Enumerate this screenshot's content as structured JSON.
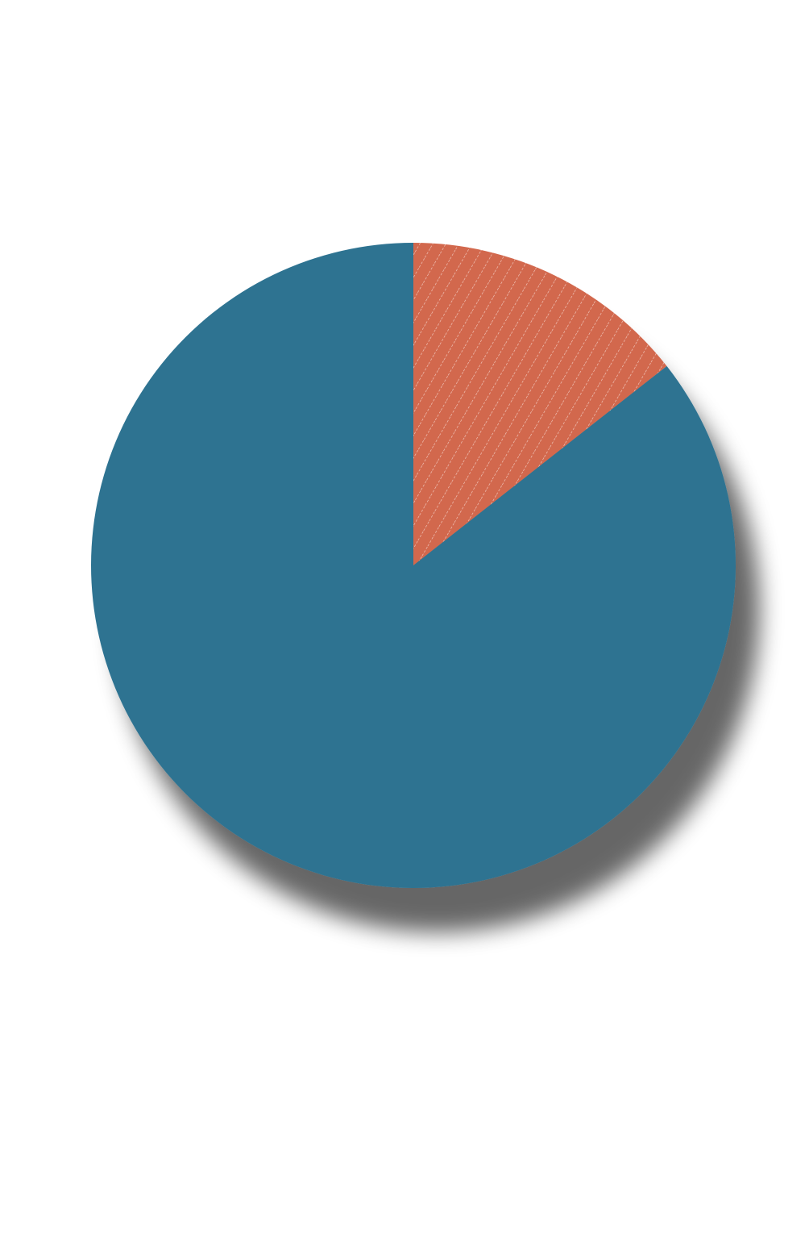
{
  "chart_data": {
    "type": "pie",
    "title": "",
    "start_angle_deg": 0,
    "direction": "clockwise",
    "shadow": true,
    "legend": "none",
    "slices": [
      {
        "value": 14.4,
        "color": "#D2684E",
        "pattern": "dashed-diagonal-hatch"
      },
      {
        "value": 85.6,
        "color": "#2F7391",
        "pattern": "solid"
      }
    ]
  }
}
